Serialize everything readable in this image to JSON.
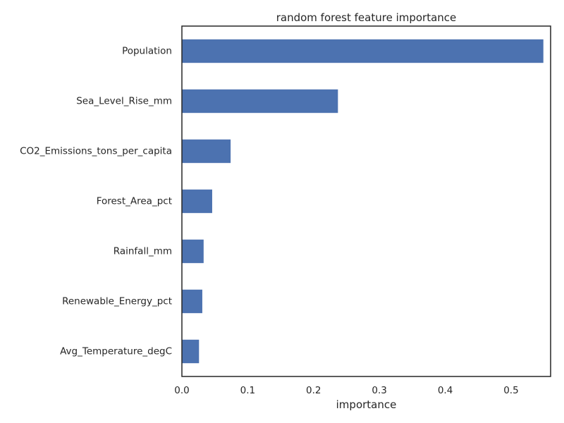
{
  "chart_data": {
    "type": "bar",
    "orientation": "horizontal",
    "title": "random forest feature importance",
    "xlabel": "importance",
    "ylabel": "",
    "xlim": [
      0,
      0.56
    ],
    "x_ticks": [
      0.0,
      0.1,
      0.2,
      0.3,
      0.4,
      0.5
    ],
    "x_tick_labels": [
      "0.0",
      "0.1",
      "0.2",
      "0.3",
      "0.4",
      "0.5"
    ],
    "grid": false,
    "categories": [
      "Population",
      "Sea_Level_Rise_mm",
      "CO2_Emissions_tons_per_capita",
      "Forest_Area_pct",
      "Rainfall_mm",
      "Renewable_Energy_pct",
      "Avg_Temperature_degC"
    ],
    "values": [
      0.549,
      0.237,
      0.074,
      0.046,
      0.033,
      0.031,
      0.026
    ],
    "colors": {
      "bar": "#4c72b0",
      "axes": "#262626",
      "text": "#262626"
    }
  }
}
